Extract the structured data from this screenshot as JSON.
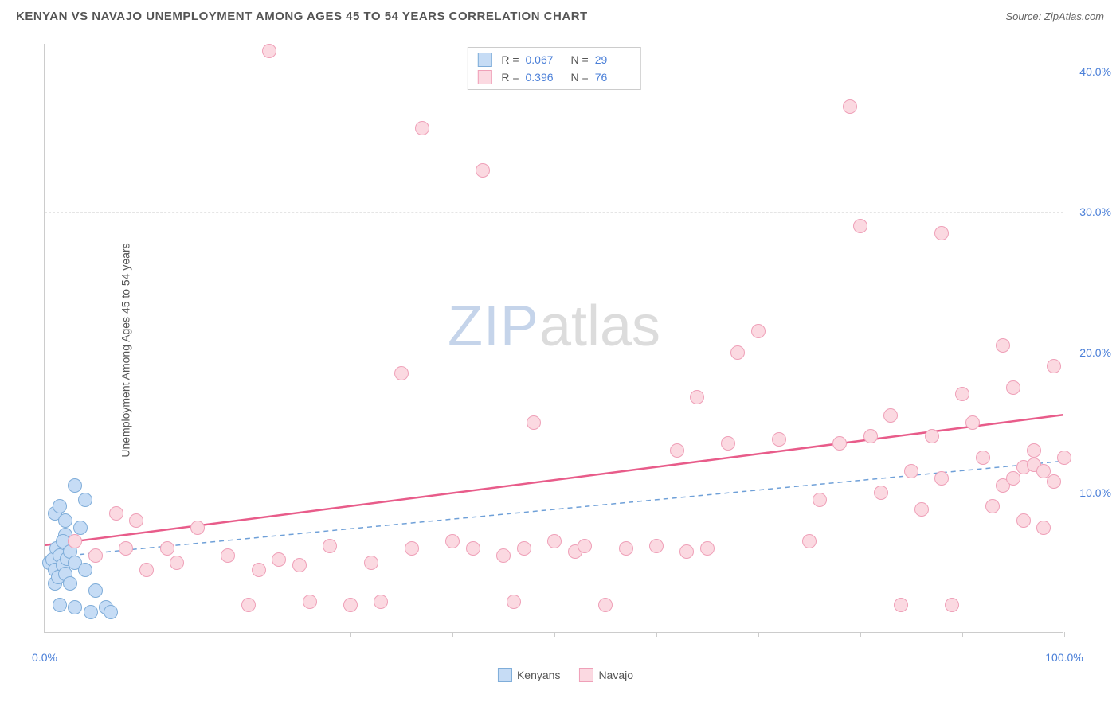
{
  "title": "KENYAN VS NAVAJO UNEMPLOYMENT AMONG AGES 45 TO 54 YEARS CORRELATION CHART",
  "source": "Source: ZipAtlas.com",
  "ylabel": "Unemployment Among Ages 45 to 54 years",
  "watermark": {
    "part1": "ZIP",
    "part2": "atlas"
  },
  "chart": {
    "type": "scatter",
    "xlim": [
      0,
      100
    ],
    "ylim": [
      0,
      42
    ],
    "background_color": "#ffffff",
    "grid_color": "#e5e5e5",
    "axis_label_color": "#4a7fd8",
    "yticks": [
      10,
      20,
      30,
      40
    ],
    "ytick_labels": [
      "10.0%",
      "20.0%",
      "30.0%",
      "40.0%"
    ],
    "xticks": [
      0,
      10,
      20,
      30,
      40,
      50,
      60,
      70,
      80,
      90,
      100
    ],
    "xtick_labels": {
      "0": "0.0%",
      "100": "100.0%"
    },
    "point_radius": 9,
    "point_stroke_width": 1.5,
    "series": [
      {
        "name": "Kenyans",
        "fill": "#c6dcf5",
        "stroke": "#7fadd9",
        "trend": {
          "y0": 5.3,
          "y100": 12.2,
          "color": "#6fa0d8",
          "dash": "6 5",
          "width": 1.5
        },
        "stats": {
          "R": "0.067",
          "N": "29"
        },
        "points": [
          [
            0.5,
            5.0
          ],
          [
            0.8,
            5.2
          ],
          [
            1.0,
            4.5
          ],
          [
            1.2,
            6.0
          ],
          [
            1.5,
            5.5
          ],
          [
            1.8,
            4.8
          ],
          [
            2.0,
            7.0
          ],
          [
            2.2,
            5.3
          ],
          [
            2.5,
            6.2
          ],
          [
            1.0,
            3.5
          ],
          [
            1.3,
            4.0
          ],
          [
            1.8,
            6.5
          ],
          [
            2.0,
            4.2
          ],
          [
            2.5,
            5.8
          ],
          [
            3.0,
            5.0
          ],
          [
            3.5,
            7.5
          ],
          [
            4.0,
            4.5
          ],
          [
            1.0,
            8.5
          ],
          [
            1.5,
            9.0
          ],
          [
            2.0,
            8.0
          ],
          [
            3.0,
            10.5
          ],
          [
            4.0,
            9.5
          ],
          [
            1.5,
            2.0
          ],
          [
            3.0,
            1.8
          ],
          [
            4.5,
            1.5
          ],
          [
            6.0,
            1.8
          ],
          [
            2.5,
            3.5
          ],
          [
            5.0,
            3.0
          ],
          [
            6.5,
            1.5
          ]
        ]
      },
      {
        "name": "Navajo",
        "fill": "#fbd9e1",
        "stroke": "#efa0b8",
        "trend": {
          "y0": 6.2,
          "y100": 15.5,
          "color": "#e85c8a",
          "dash": "none",
          "width": 2.5
        },
        "stats": {
          "R": "0.396",
          "N": "76"
        },
        "points": [
          [
            3,
            6.5
          ],
          [
            5,
            5.5
          ],
          [
            7,
            8.5
          ],
          [
            8,
            6.0
          ],
          [
            9,
            8.0
          ],
          [
            10,
            4.5
          ],
          [
            12,
            6.0
          ],
          [
            13,
            5.0
          ],
          [
            15,
            7.5
          ],
          [
            18,
            5.5
          ],
          [
            20,
            2.0
          ],
          [
            21,
            4.5
          ],
          [
            22,
            41.5
          ],
          [
            23,
            5.2
          ],
          [
            25,
            4.8
          ],
          [
            26,
            2.2
          ],
          [
            28,
            6.2
          ],
          [
            30,
            2.0
          ],
          [
            32,
            5.0
          ],
          [
            33,
            2.2
          ],
          [
            35,
            18.5
          ],
          [
            36,
            6.0
          ],
          [
            37,
            36.0
          ],
          [
            40,
            6.5
          ],
          [
            42,
            6.0
          ],
          [
            43,
            33.0
          ],
          [
            45,
            5.5
          ],
          [
            46,
            2.2
          ],
          [
            47,
            6.0
          ],
          [
            48,
            15.0
          ],
          [
            50,
            6.5
          ],
          [
            52,
            5.8
          ],
          [
            53,
            6.2
          ],
          [
            55,
            2.0
          ],
          [
            57,
            6.0
          ],
          [
            60,
            6.2
          ],
          [
            62,
            13.0
          ],
          [
            63,
            5.8
          ],
          [
            64,
            16.8
          ],
          [
            65,
            6.0
          ],
          [
            67,
            13.5
          ],
          [
            68,
            20.0
          ],
          [
            70,
            21.5
          ],
          [
            72,
            13.8
          ],
          [
            75,
            6.5
          ],
          [
            76,
            9.5
          ],
          [
            78,
            13.5
          ],
          [
            79,
            37.5
          ],
          [
            80,
            29.0
          ],
          [
            81,
            14.0
          ],
          [
            82,
            10.0
          ],
          [
            83,
            15.5
          ],
          [
            84,
            2.0
          ],
          [
            85,
            11.5
          ],
          [
            86,
            8.8
          ],
          [
            87,
            14.0
          ],
          [
            88,
            28.5
          ],
          [
            89,
            2.0
          ],
          [
            90,
            17.0
          ],
          [
            91,
            15.0
          ],
          [
            92,
            12.5
          ],
          [
            93,
            9.0
          ],
          [
            94,
            10.5
          ],
          [
            94,
            20.5
          ],
          [
            95,
            11.0
          ],
          [
            95,
            17.5
          ],
          [
            96,
            11.8
          ],
          [
            96,
            8.0
          ],
          [
            97,
            12.0
          ],
          [
            97,
            13.0
          ],
          [
            98,
            11.5
          ],
          [
            98,
            7.5
          ],
          [
            99,
            19.0
          ],
          [
            99,
            10.8
          ],
          [
            100,
            12.5
          ],
          [
            88,
            11.0
          ]
        ]
      }
    ]
  },
  "legend": {
    "items": [
      {
        "label": "Kenyans",
        "fill": "#c6dcf5",
        "stroke": "#7fadd9"
      },
      {
        "label": "Navajo",
        "fill": "#fbd9e1",
        "stroke": "#efa0b8"
      }
    ]
  }
}
